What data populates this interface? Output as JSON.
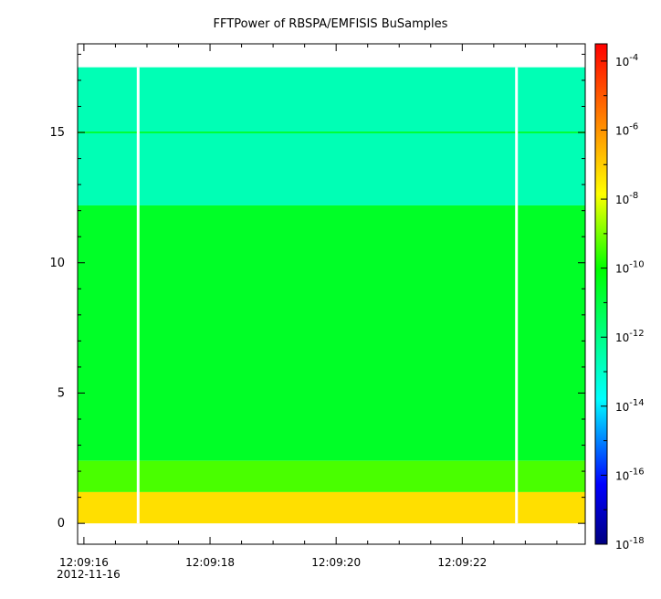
{
  "chart_data": {
    "type": "heatmap",
    "title": "FFTPower of RBSPA/EMFISIS  BuSamples",
    "xlabel": "",
    "ylabel": "",
    "x": {
      "range_seconds_after_12_09_16": [
        -0.1,
        7.95
      ],
      "ticks": [
        {
          "label": "12:09:16",
          "date": "2012-11-16",
          "t": 0
        },
        {
          "label": "12:09:18",
          "t": 2
        },
        {
          "label": "12:09:20",
          "t": 4
        },
        {
          "label": "12:09:22",
          "t": 6
        }
      ],
      "minor_tick_step_seconds": 0.5
    },
    "y": {
      "range": [
        -0.8,
        18.4
      ],
      "ticks": [
        0,
        5,
        10,
        15
      ],
      "labels": [
        "0",
        "5",
        "10",
        "15"
      ],
      "minor_tick_step": 1
    },
    "colorbar": {
      "scale": "log",
      "colormap": "rainbow",
      "range_exponent": [
        -18,
        -3.5
      ],
      "tick_exponents": [
        -18,
        -16,
        -14,
        -12,
        -10,
        -8,
        -6,
        -4
      ],
      "tick_base": "10",
      "tick_labels": [
        "-18",
        "-16",
        "-14",
        "-12",
        "-10",
        "-8",
        "-6",
        "-4"
      ]
    },
    "data_extent": {
      "y_max": 17.5
    },
    "gaps_seconds": [
      0.86,
      6.86
    ],
    "bands": [
      {
        "y_from": 12.2,
        "y_to": 17.5,
        "log_power": -12.7
      },
      {
        "y_from": 2.4,
        "y_to": 12.2,
        "log_power": -10.6
      },
      {
        "y_from": 1.2,
        "y_to": 2.4,
        "log_power": -9.4
      },
      {
        "y_from": 0.0,
        "y_to": 1.2,
        "log_power": -7.3
      }
    ],
    "lines": [
      {
        "y": 15.0,
        "log_power": -10.8
      }
    ],
    "grid": false,
    "legend": "none"
  }
}
